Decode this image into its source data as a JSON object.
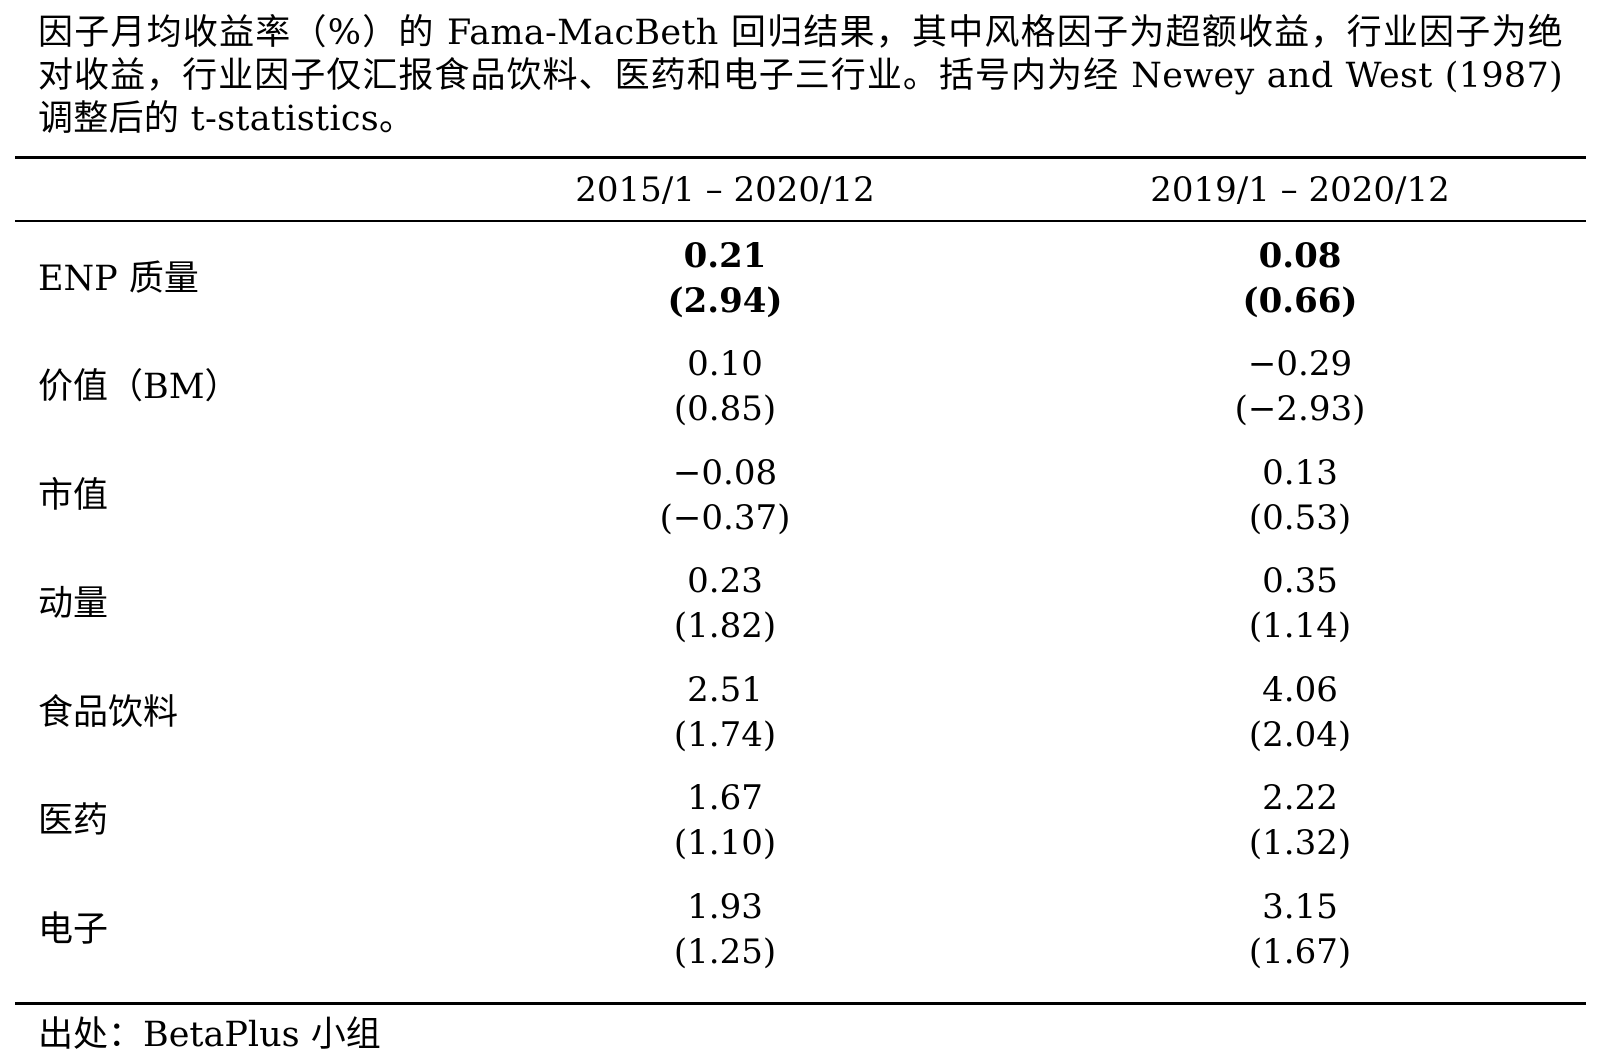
{
  "caption": {
    "text": "因子月均收益率（%）的 Fama-MacBeth 回归结果，其中风格因子为超额收益，行业因子为绝对收益，行业因子仅汇报食品饮料、医药和电子三行业。括号内为经 Newey and West (1987) 调整后的 t-statistics。"
  },
  "table": {
    "headers": [
      "",
      "2015/1 – 2020/12",
      "2019/1 – 2020/12"
    ],
    "rows": [
      {
        "label": "ENP 质量",
        "values": [
          "0.21",
          "0.08"
        ],
        "tstats": [
          "(2.94)",
          "(0.66)"
        ]
      },
      {
        "label": "价值（BM）",
        "values": [
          "0.10",
          "−0.29"
        ],
        "tstats": [
          "(0.85)",
          "(−2.93)"
        ]
      },
      {
        "label": "市值",
        "values": [
          "−0.08",
          "0.13"
        ],
        "tstats": [
          "(−0.37)",
          "(0.53)"
        ]
      },
      {
        "label": "动量",
        "values": [
          "0.23",
          "0.35"
        ],
        "tstats": [
          "(1.82)",
          "(1.14)"
        ]
      },
      {
        "label": "食品饮料",
        "values": [
          "2.51",
          "4.06"
        ],
        "tstats": [
          "(1.74)",
          "(2.04)"
        ]
      },
      {
        "label": "医药",
        "values": [
          "1.67",
          "2.22"
        ],
        "tstats": [
          "(1.10)",
          "(1.32)"
        ]
      },
      {
        "label": "电子",
        "values": [
          "1.93",
          "3.15"
        ],
        "tstats": [
          "(1.25)",
          "(1.67)"
        ]
      }
    ]
  },
  "source": {
    "text": "出处：BetaPlus 小组"
  }
}
